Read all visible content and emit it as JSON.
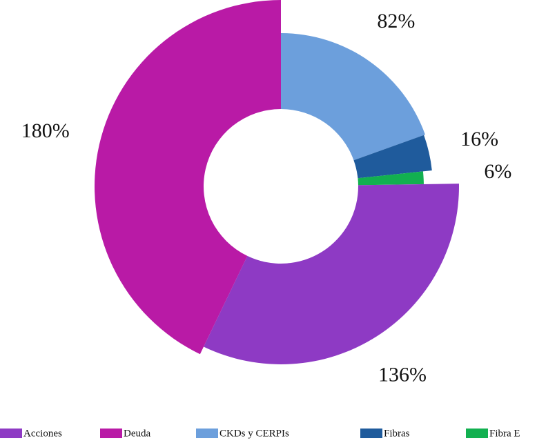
{
  "chart_data": {
    "type": "pie",
    "categories": [
      "Acciones",
      "Deuda",
      "CKDs  y  CERPIs",
      "Fibras",
      "Fibra E"
    ],
    "values": [
      136,
      180,
      82,
      16,
      6
    ],
    "value_labels": [
      "136%",
      "180%",
      "82%",
      "16%",
      "6%"
    ],
    "colors": [
      "#8e3ac4",
      "#b91aa6",
      "#6c9fdc",
      "#1f5b9c",
      "#12b050"
    ],
    "legend": "bottom"
  }
}
